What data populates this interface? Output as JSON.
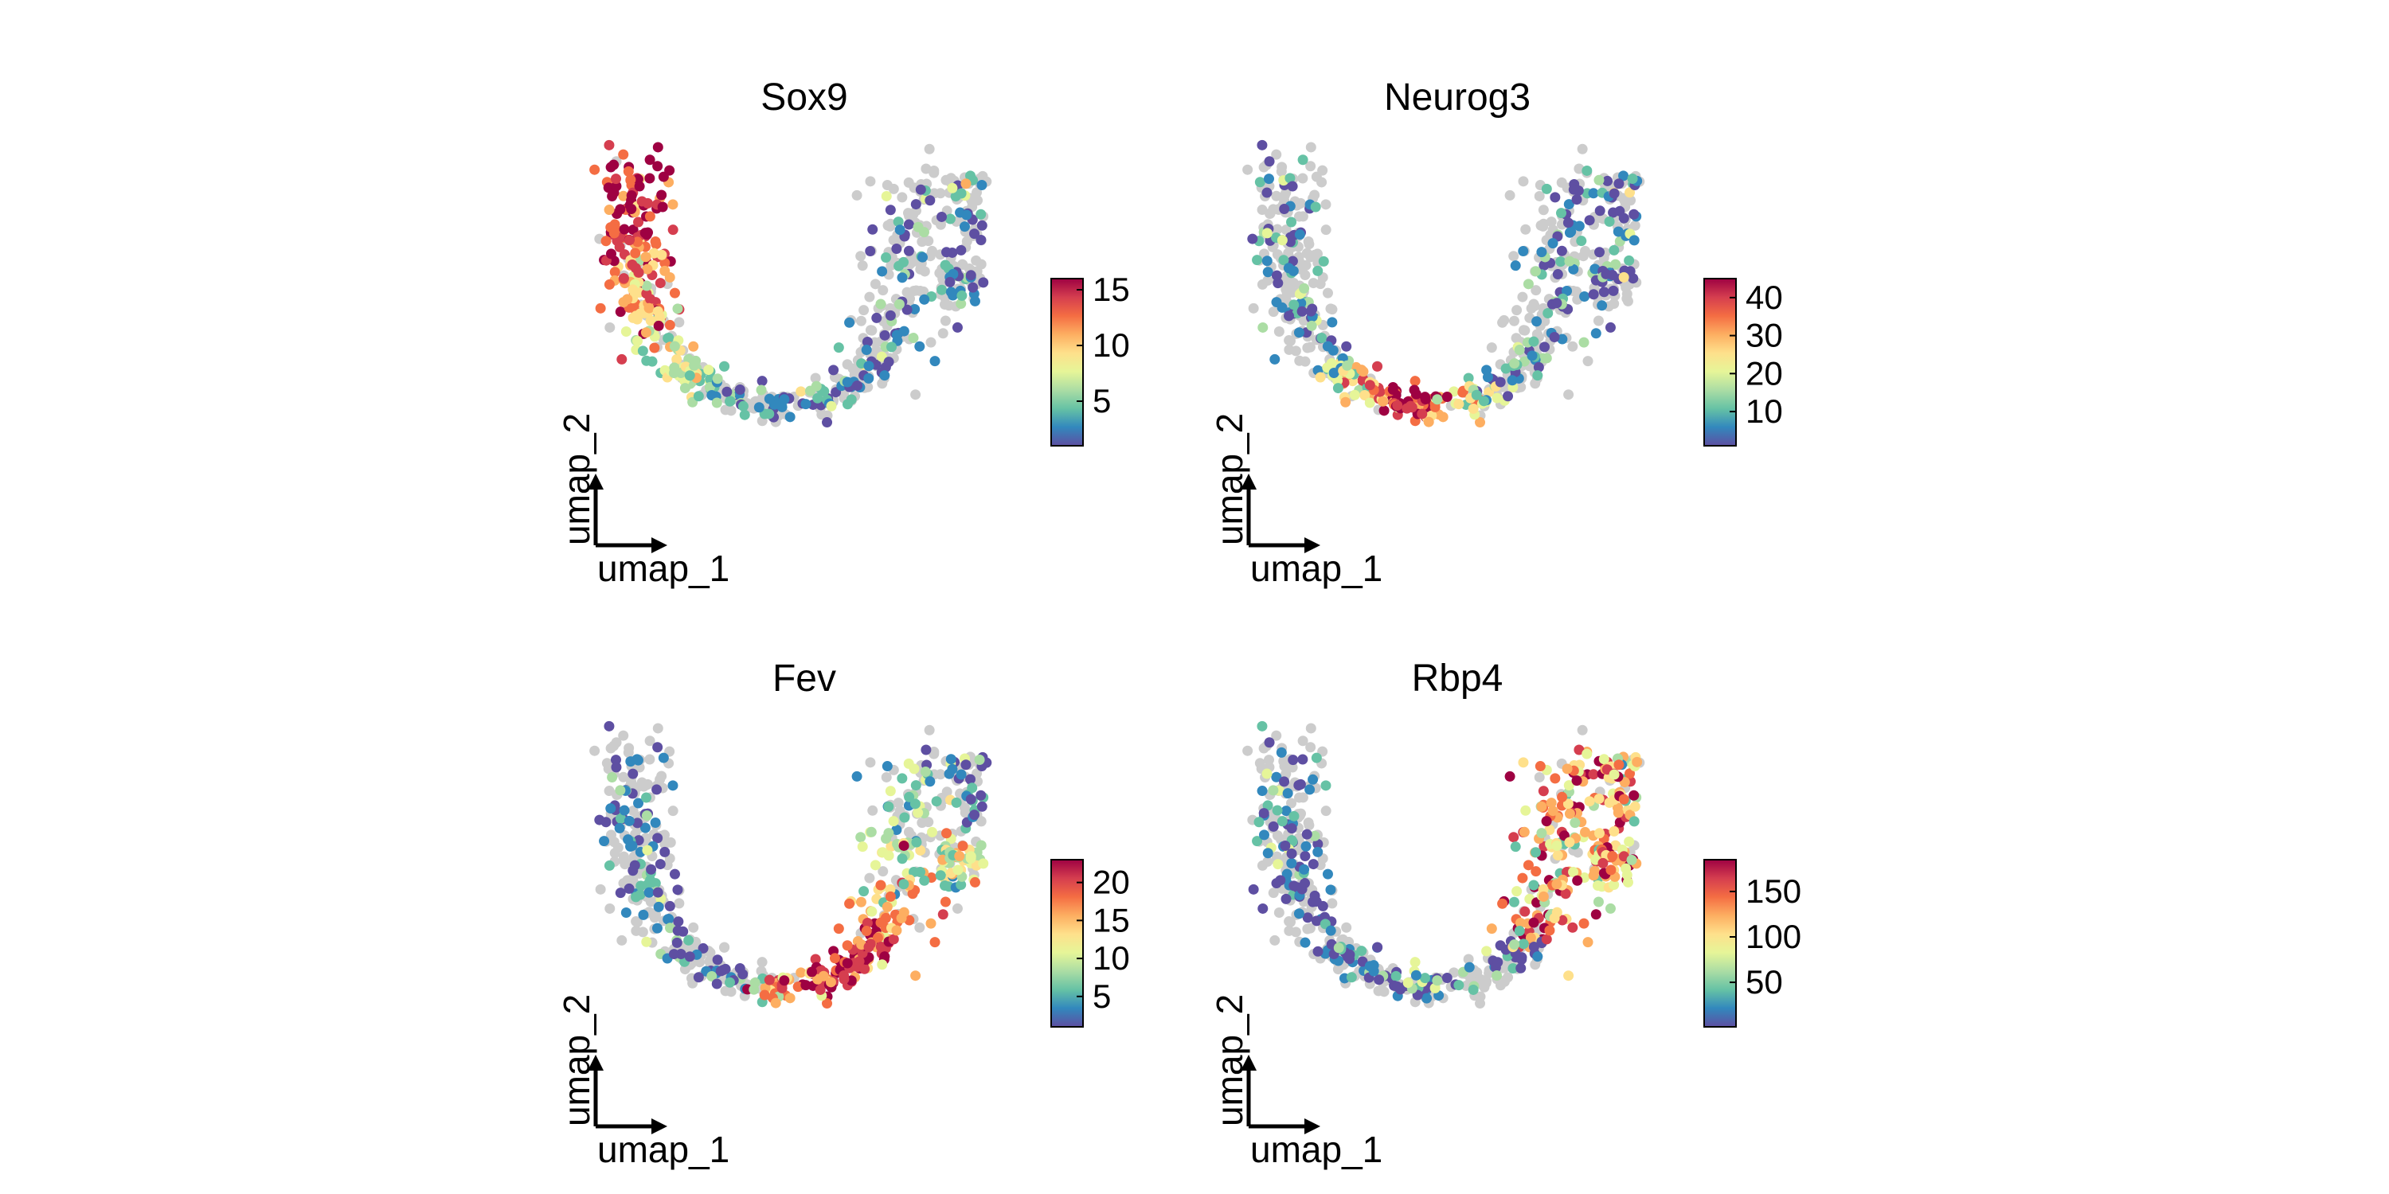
{
  "chart_data": [
    {
      "type": "scatter",
      "title": "Sox9",
      "xlabel": "umap_1",
      "ylabel": "umap_2",
      "colorbar": {
        "min": 1,
        "max": 16,
        "ticks": [
          5,
          10,
          15
        ]
      },
      "expression_region": "top-left arm",
      "colormap": [
        "#5E4FA2",
        "#3288BD",
        "#66C2A5",
        "#ABDDA4",
        "#E6F598",
        "#FEE08B",
        "#FDAE61",
        "#F46D43",
        "#D53E4F",
        "#9E0142"
      ],
      "na_color": "#CCCCCC"
    },
    {
      "type": "scatter",
      "title": "Neurog3",
      "xlabel": "umap_1",
      "ylabel": "umap_2",
      "colorbar": {
        "min": 1,
        "max": 45,
        "ticks": [
          10,
          20,
          30,
          40
        ]
      },
      "expression_region": "bottom curve",
      "colormap": [
        "#5E4FA2",
        "#3288BD",
        "#66C2A5",
        "#ABDDA4",
        "#E6F598",
        "#FEE08B",
        "#FDAE61",
        "#F46D43",
        "#D53E4F",
        "#9E0142"
      ],
      "na_color": "#CCCCCC"
    },
    {
      "type": "scatter",
      "title": "Fev",
      "xlabel": "umap_1",
      "ylabel": "umap_2",
      "colorbar": {
        "min": 1,
        "max": 23,
        "ticks": [
          5,
          10,
          15,
          20
        ]
      },
      "expression_region": "right arm lower",
      "colormap": [
        "#5E4FA2",
        "#3288BD",
        "#66C2A5",
        "#ABDDA4",
        "#E6F598",
        "#FEE08B",
        "#FDAE61",
        "#F46D43",
        "#D53E4F",
        "#9E0142"
      ],
      "na_color": "#CCCCCC"
    },
    {
      "type": "scatter",
      "title": "Rbp4",
      "xlabel": "umap_1",
      "ylabel": "umap_2",
      "colorbar": {
        "min": 1,
        "max": 185,
        "ticks": [
          50,
          100,
          150
        ]
      },
      "expression_region": "right arm upper",
      "colormap": [
        "#5E4FA2",
        "#3288BD",
        "#66C2A5",
        "#ABDDA4",
        "#E6F598",
        "#FEE08B",
        "#FDAE61",
        "#F46D43",
        "#D53E4F",
        "#9E0142"
      ],
      "na_color": "#CCCCCC"
    }
  ]
}
